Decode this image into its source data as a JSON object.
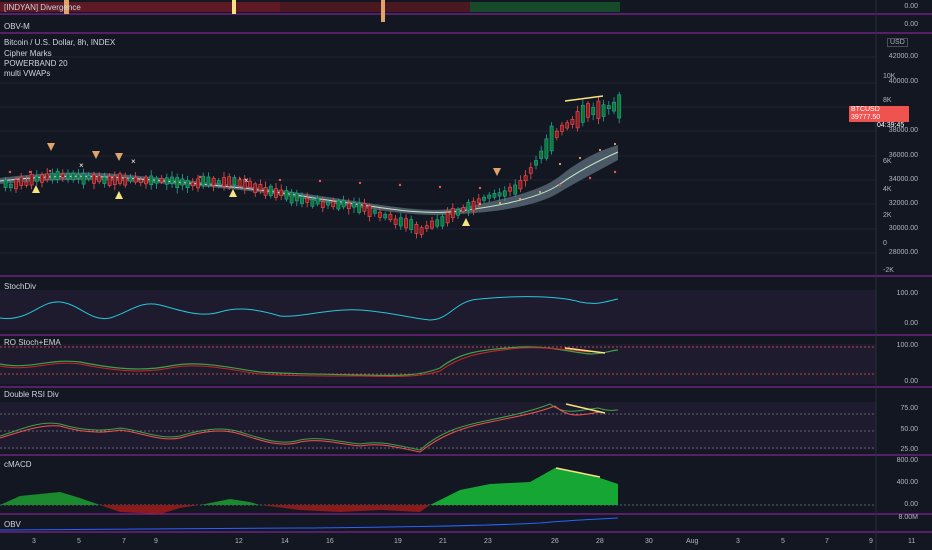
{
  "header": {
    "title": "Bitcoin / U.S. Dollar, 8h, INDEX",
    "indicators": [
      "Cipher Marks",
      "POWERBAND 20",
      "multi VWAPs"
    ]
  },
  "top_strip": {
    "label": "[INDYAN] Divergence",
    "axis": [
      "0.00",
      "0.00"
    ]
  },
  "obv_m": {
    "label": "OBV-M"
  },
  "price_axis": [
    "42000.00",
    "40000.00",
    "38000.00",
    "36000.00",
    "34000.00",
    "32000.00",
    "30000.00",
    "28000.00"
  ],
  "volume_axis": [
    "10K",
    "8K",
    "6K",
    "4K",
    "2K",
    "0",
    "-2K"
  ],
  "currency": "USD",
  "price_badge": {
    "symbol": "BTCUSD",
    "price": "39777.50",
    "countdown": "04:39:45"
  },
  "panels": [
    {
      "name": "StochDiv",
      "axis": [
        "100.00",
        "0.00"
      ]
    },
    {
      "name": "RO Stoch+EMA",
      "axis": [
        "100.00",
        "0.00"
      ]
    },
    {
      "name": "Double RSI Div",
      "axis": [
        "75.00",
        "50.00",
        "25.00"
      ]
    },
    {
      "name": "cMACD",
      "axis": [
        "800.00",
        "400.00",
        "0.00"
      ]
    },
    {
      "name": "OBV",
      "axis": [
        "8.00M"
      ]
    }
  ],
  "x_axis": [
    "3",
    "5",
    "7",
    "9",
    "12",
    "14",
    "16",
    "19",
    "21",
    "23",
    "26",
    "28",
    "30",
    "Aug",
    "3",
    "5",
    "7",
    "9",
    "11"
  ],
  "colors": {
    "bg": "#131722",
    "panel_border": "#9c27b0",
    "up": "#26a69a",
    "down": "#ef5350",
    "highlight": "#f7e282"
  }
}
